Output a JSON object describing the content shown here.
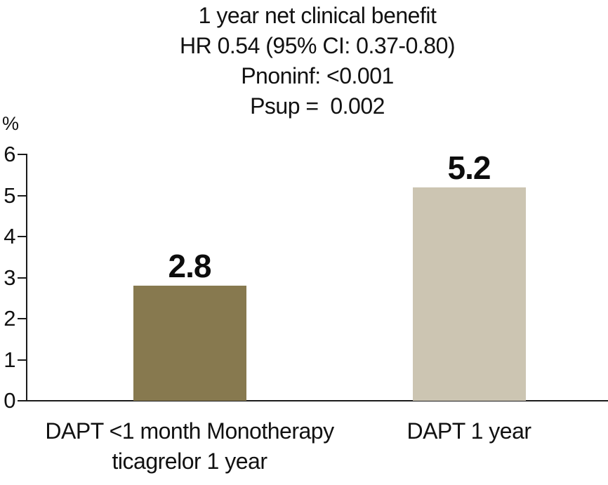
{
  "chart_data": {
    "type": "bar",
    "title_lines": [
      "1 year net clinical benefit",
      "HR 0.54 (95% CI: 0.37-0.80)",
      "Pnoninf: <0.001",
      "Psup =  0.002"
    ],
    "unit_label": "%",
    "categories": [
      [
        "DAPT <1 month Monotherapy",
        "ticagrelor 1 year"
      ],
      [
        "DAPT 1 year"
      ]
    ],
    "values": [
      2.8,
      5.2
    ],
    "bar_labels": [
      "2.8",
      "5.2"
    ],
    "bar_colors": [
      "#87794f",
      "#ccc5b2"
    ],
    "ylim": [
      0,
      6
    ],
    "yticks": [
      0,
      1,
      2,
      3,
      4,
      5,
      6
    ],
    "grid": false,
    "axis_color": "#1a1a1a",
    "legend": null
  }
}
